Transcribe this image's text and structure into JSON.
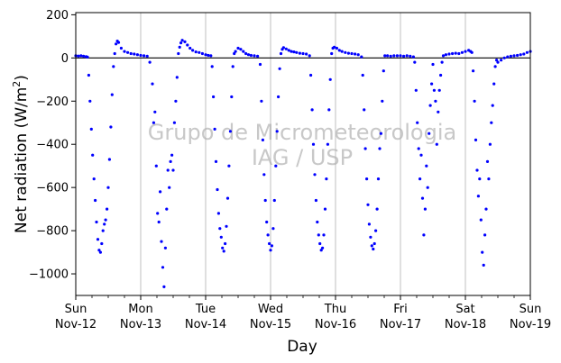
{
  "chart_data": {
    "type": "scatter",
    "xlabel": "Day",
    "ylabel": "Net radiation (W/m",
    "ylabel_sup": "2",
    "ylabel_close": ")",
    "watermark_line1": "Grupo de Micrometeorologia",
    "watermark_line2": "IAG / USP",
    "ylim": [
      -1100,
      210
    ],
    "yticks": [
      200,
      0,
      -200,
      -400,
      -600,
      -800,
      -1000
    ],
    "xlim": [
      0,
      7
    ],
    "xticks": [
      {
        "day": 0,
        "line1": "Sun",
        "line2": "Nov-12"
      },
      {
        "day": 1,
        "line1": "Mon",
        "line2": "Nov-13"
      },
      {
        "day": 2,
        "line1": "Tue",
        "line2": "Nov-14"
      },
      {
        "day": 3,
        "line1": "Wed",
        "line2": "Nov-15"
      },
      {
        "day": 4,
        "line1": "Thu",
        "line2": "Nov-16"
      },
      {
        "day": 5,
        "line1": "Fri",
        "line2": "Nov-17"
      },
      {
        "day": 6,
        "line1": "Sat",
        "line2": "Nov-18"
      },
      {
        "day": 7,
        "line1": "Sun",
        "line2": "Nov-19"
      }
    ],
    "grid": "vertical",
    "zero_line": true,
    "marker_color": "#0000ff",
    "series": [
      {
        "points": [
          [
            0.0,
            10
          ],
          [
            0.04,
            9
          ],
          [
            0.08,
            10
          ],
          [
            0.12,
            8
          ],
          [
            0.16,
            6
          ],
          [
            0.18,
            4
          ],
          [
            0.2,
            -80
          ],
          [
            0.22,
            -200
          ],
          [
            0.24,
            -330
          ],
          [
            0.26,
            -450
          ],
          [
            0.28,
            -560
          ],
          [
            0.3,
            -660
          ],
          [
            0.32,
            -760
          ],
          [
            0.34,
            -840
          ],
          [
            0.36,
            -890
          ],
          [
            0.38,
            -900
          ],
          [
            0.4,
            -860
          ],
          [
            0.42,
            -800
          ],
          [
            0.44,
            -770
          ],
          [
            0.46,
            -750
          ],
          [
            0.48,
            -700
          ],
          [
            0.5,
            -600
          ],
          [
            0.52,
            -470
          ],
          [
            0.54,
            -320
          ],
          [
            0.56,
            -170
          ],
          [
            0.58,
            -40
          ],
          [
            0.6,
            20
          ],
          [
            0.62,
            65
          ],
          [
            0.64,
            78
          ],
          [
            0.66,
            72
          ],
          [
            0.7,
            45
          ],
          [
            0.75,
            30
          ],
          [
            0.8,
            25
          ],
          [
            0.85,
            20
          ],
          [
            0.9,
            18
          ],
          [
            0.95,
            15
          ],
          [
            1.0,
            12
          ],
          [
            1.05,
            10
          ],
          [
            1.1,
            8
          ],
          [
            1.14,
            -20
          ],
          [
            1.18,
            -120
          ],
          [
            1.2,
            -300
          ],
          [
            1.22,
            -250
          ],
          [
            1.24,
            -500
          ],
          [
            1.26,
            -720
          ],
          [
            1.28,
            -760
          ],
          [
            1.3,
            -620
          ],
          [
            1.32,
            -850
          ],
          [
            1.34,
            -970
          ],
          [
            1.36,
            -1060
          ],
          [
            1.38,
            -880
          ],
          [
            1.4,
            -700
          ],
          [
            1.42,
            -520
          ],
          [
            1.44,
            -600
          ],
          [
            1.46,
            -480
          ],
          [
            1.48,
            -450
          ],
          [
            1.5,
            -520
          ],
          [
            1.52,
            -300
          ],
          [
            1.54,
            -200
          ],
          [
            1.56,
            -90
          ],
          [
            1.58,
            20
          ],
          [
            1.6,
            50
          ],
          [
            1.62,
            70
          ],
          [
            1.64,
            82
          ],
          [
            1.68,
            75
          ],
          [
            1.72,
            60
          ],
          [
            1.76,
            45
          ],
          [
            1.8,
            35
          ],
          [
            1.85,
            28
          ],
          [
            1.9,
            25
          ],
          [
            1.95,
            20
          ],
          [
            2.0,
            15
          ],
          [
            2.04,
            12
          ],
          [
            2.08,
            10
          ],
          [
            2.1,
            -40
          ],
          [
            2.12,
            -180
          ],
          [
            2.14,
            -330
          ],
          [
            2.16,
            -480
          ],
          [
            2.18,
            -610
          ],
          [
            2.2,
            -720
          ],
          [
            2.22,
            -790
          ],
          [
            2.24,
            -830
          ],
          [
            2.26,
            -880
          ],
          [
            2.28,
            -895
          ],
          [
            2.3,
            -860
          ],
          [
            2.32,
            -780
          ],
          [
            2.34,
            -650
          ],
          [
            2.36,
            -500
          ],
          [
            2.38,
            -340
          ],
          [
            2.4,
            -180
          ],
          [
            2.42,
            -40
          ],
          [
            2.44,
            20
          ],
          [
            2.46,
            30
          ],
          [
            2.5,
            45
          ],
          [
            2.54,
            40
          ],
          [
            2.58,
            30
          ],
          [
            2.62,
            20
          ],
          [
            2.66,
            15
          ],
          [
            2.7,
            12
          ],
          [
            2.75,
            10
          ],
          [
            2.8,
            8
          ],
          [
            2.84,
            -30
          ],
          [
            2.86,
            -200
          ],
          [
            2.88,
            -380
          ],
          [
            2.9,
            -540
          ],
          [
            2.92,
            -660
          ],
          [
            2.94,
            -760
          ],
          [
            2.96,
            -820
          ],
          [
            2.98,
            -860
          ],
          [
            3.0,
            -890
          ],
          [
            3.02,
            -870
          ],
          [
            3.04,
            -790
          ],
          [
            3.06,
            -660
          ],
          [
            3.08,
            -500
          ],
          [
            3.1,
            -340
          ],
          [
            3.12,
            -180
          ],
          [
            3.14,
            -50
          ],
          [
            3.16,
            20
          ],
          [
            3.18,
            40
          ],
          [
            3.2,
            48
          ],
          [
            3.24,
            42
          ],
          [
            3.28,
            35
          ],
          [
            3.32,
            30
          ],
          [
            3.36,
            28
          ],
          [
            3.4,
            25
          ],
          [
            3.45,
            22
          ],
          [
            3.5,
            20
          ],
          [
            3.55,
            18
          ],
          [
            3.6,
            10
          ],
          [
            3.62,
            -80
          ],
          [
            3.64,
            -240
          ],
          [
            3.66,
            -400
          ],
          [
            3.68,
            -540
          ],
          [
            3.7,
            -660
          ],
          [
            3.72,
            -760
          ],
          [
            3.74,
            -820
          ],
          [
            3.76,
            -860
          ],
          [
            3.78,
            -890
          ],
          [
            3.8,
            -880
          ],
          [
            3.82,
            -820
          ],
          [
            3.84,
            -700
          ],
          [
            3.86,
            -560
          ],
          [
            3.88,
            -400
          ],
          [
            3.9,
            -240
          ],
          [
            3.92,
            -100
          ],
          [
            3.94,
            20
          ],
          [
            3.96,
            45
          ],
          [
            3.98,
            50
          ],
          [
            4.02,
            45
          ],
          [
            4.06,
            35
          ],
          [
            4.1,
            30
          ],
          [
            4.15,
            25
          ],
          [
            4.2,
            22
          ],
          [
            4.25,
            20
          ],
          [
            4.3,
            18
          ],
          [
            4.35,
            15
          ],
          [
            4.4,
            5
          ],
          [
            4.42,
            -80
          ],
          [
            4.44,
            -240
          ],
          [
            4.46,
            -420
          ],
          [
            4.48,
            -560
          ],
          [
            4.5,
            -680
          ],
          [
            4.52,
            -770
          ],
          [
            4.54,
            -830
          ],
          [
            4.56,
            -870
          ],
          [
            4.58,
            -885
          ],
          [
            4.6,
            -860
          ],
          [
            4.62,
            -800
          ],
          [
            4.64,
            -700
          ],
          [
            4.66,
            -560
          ],
          [
            4.68,
            -420
          ],
          [
            4.7,
            -350
          ],
          [
            4.72,
            -200
          ],
          [
            4.74,
            -60
          ],
          [
            4.76,
            10
          ],
          [
            4.8,
            10
          ],
          [
            4.85,
            8
          ],
          [
            4.9,
            10
          ],
          [
            4.95,
            10
          ],
          [
            5.0,
            10
          ],
          [
            5.05,
            8
          ],
          [
            5.1,
            10
          ],
          [
            5.15,
            8
          ],
          [
            5.2,
            5
          ],
          [
            5.22,
            -20
          ],
          [
            5.24,
            -150
          ],
          [
            5.26,
            -300
          ],
          [
            5.28,
            -420
          ],
          [
            5.3,
            -560
          ],
          [
            5.32,
            -450
          ],
          [
            5.34,
            -650
          ],
          [
            5.36,
            -820
          ],
          [
            5.38,
            -700
          ],
          [
            5.4,
            -500
          ],
          [
            5.42,
            -600
          ],
          [
            5.44,
            -350
          ],
          [
            5.46,
            -220
          ],
          [
            5.48,
            -120
          ],
          [
            5.5,
            -30
          ],
          [
            5.52,
            -150
          ],
          [
            5.54,
            -200
          ],
          [
            5.56,
            -400
          ],
          [
            5.58,
            -250
          ],
          [
            5.6,
            -150
          ],
          [
            5.62,
            -80
          ],
          [
            5.64,
            -20
          ],
          [
            5.66,
            10
          ],
          [
            5.7,
            15
          ],
          [
            5.75,
            18
          ],
          [
            5.8,
            20
          ],
          [
            5.85,
            22
          ],
          [
            5.9,
            20
          ],
          [
            5.95,
            25
          ],
          [
            6.0,
            30
          ],
          [
            6.05,
            35
          ],
          [
            6.08,
            30
          ],
          [
            6.1,
            25
          ],
          [
            6.12,
            -60
          ],
          [
            6.14,
            -200
          ],
          [
            6.16,
            -380
          ],
          [
            6.18,
            -520
          ],
          [
            6.2,
            -640
          ],
          [
            6.22,
            -560
          ],
          [
            6.24,
            -750
          ],
          [
            6.26,
            -900
          ],
          [
            6.28,
            -960
          ],
          [
            6.3,
            -820
          ],
          [
            6.32,
            -700
          ],
          [
            6.34,
            -480
          ],
          [
            6.36,
            -560
          ],
          [
            6.38,
            -400
          ],
          [
            6.4,
            -300
          ],
          [
            6.42,
            -220
          ],
          [
            6.44,
            -120
          ],
          [
            6.46,
            -40
          ],
          [
            6.48,
            -10
          ],
          [
            6.5,
            -20
          ],
          [
            6.55,
            -10
          ],
          [
            6.6,
            0
          ],
          [
            6.65,
            5
          ],
          [
            6.7,
            8
          ],
          [
            6.75,
            10
          ],
          [
            6.8,
            12
          ],
          [
            6.85,
            15
          ],
          [
            6.9,
            18
          ],
          [
            6.95,
            25
          ],
          [
            7.0,
            30
          ]
        ]
      }
    ]
  }
}
